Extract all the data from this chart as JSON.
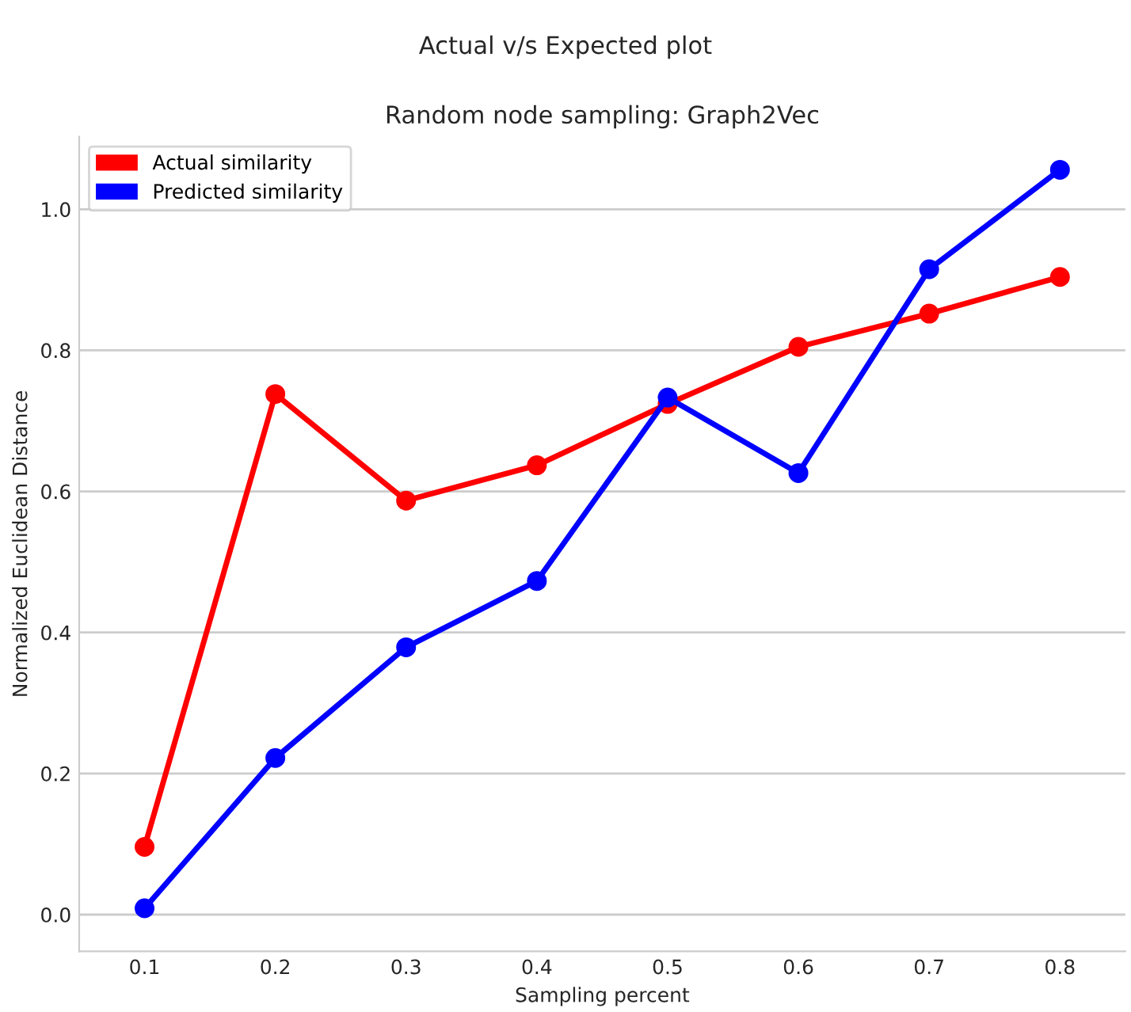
{
  "chart_data": {
    "type": "line",
    "title": "Actual v/s Expected plot",
    "subtitle": "Random node sampling: Graph2Vec",
    "xlabel": "Sampling percent",
    "ylabel": "Normalized Euclidean Distance",
    "categories": [
      "0.1",
      "0.2",
      "0.3",
      "0.4",
      "0.5",
      "0.6",
      "0.7",
      "0.8"
    ],
    "series": [
      {
        "name": "Actual similarity",
        "color": "#ff0000",
        "values": [
          0.096,
          0.738,
          0.587,
          0.637,
          0.724,
          0.805,
          0.852,
          0.904
        ]
      },
      {
        "name": "Predicted similarity",
        "color": "#0000ff",
        "values": [
          0.009,
          0.222,
          0.379,
          0.473,
          0.733,
          0.626,
          0.915,
          1.056
        ]
      }
    ],
    "ylim": [
      -0.052,
      1.103
    ],
    "yticks": [
      {
        "value": 0,
        "label": "0.0"
      },
      0.2,
      0.4,
      0.6,
      0.8,
      {
        "value": 1,
        "label": "1.0"
      }
    ],
    "grid": "y",
    "legend": "top left",
    "marker": "circle",
    "line_style": "solid"
  }
}
